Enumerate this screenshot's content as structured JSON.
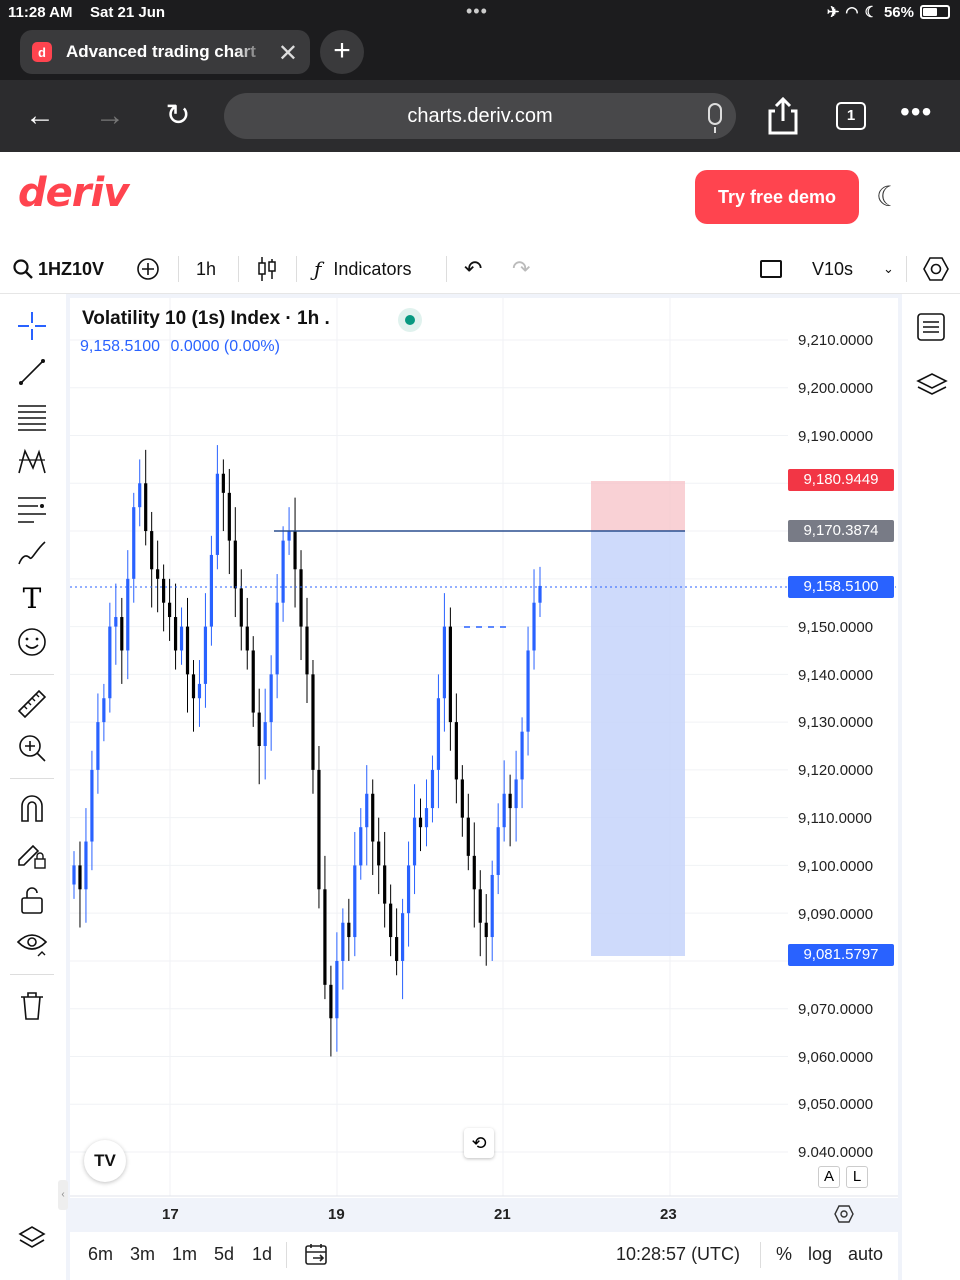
{
  "status_bar": {
    "time": "11:28 AM",
    "date": "Sat 21 Jun",
    "battery": "56%"
  },
  "browser": {
    "tab_title": "Advanced trading chart",
    "favicon_letter": "d",
    "url": "charts.deriv.com",
    "tab_count": "1"
  },
  "site": {
    "logo": "deriv",
    "demo_button": "Try free demo"
  },
  "toolbar": {
    "symbol": "1HZ10V",
    "interval": "1h",
    "indicators_label": "Indicators",
    "account_label": "V10s"
  },
  "legend": {
    "title": "Volatility 10 (1s) Index · 1h .",
    "price": "9,158.5100",
    "change": "0.0000 (0.00%)"
  },
  "price_axis": [
    "9,210.0000",
    "9,200.0000",
    "9,190.0000",
    "9,150.0000",
    "9,140.0000",
    "9,130.0000",
    "9,120.0000",
    "9,110.0000",
    "9,100.0000",
    "9,090.0000",
    "9,070.0000",
    "9,060.0000",
    "9,050.0000",
    "9.040.0000"
  ],
  "price_tags": {
    "stop": "9,180.9449",
    "entry": "9,170.3874",
    "current": "9,158.5100",
    "target": "9,081.5797"
  },
  "time_axis": [
    "17",
    "19",
    "21",
    "23"
  ],
  "bottom_bar": {
    "ranges": [
      "6m",
      "3m",
      "1m",
      "5d",
      "1d"
    ],
    "clock": "10:28:57 (UTC)",
    "percent": "%",
    "log": "log",
    "auto": "auto"
  },
  "axis_buttons": {
    "a": "A",
    "l": "L"
  },
  "colors": {
    "accent": "#ff444f",
    "candle_up": "#2962ff",
    "candle_down": "#000000",
    "current_tag": "#2962ff",
    "stop_tag": "#f23645",
    "entry_tag": "#787b86"
  },
  "chart_data": {
    "type": "candlestick",
    "x_ticks": [
      "17",
      "19",
      "21",
      "23"
    ],
    "ylim": [
      9035,
      9215
    ],
    "closes": [
      9100,
      9095,
      9105,
      9120,
      9130,
      9135,
      9150,
      9152,
      9145,
      9160,
      9175,
      9180,
      9170,
      9162,
      9160,
      9155,
      9152,
      9145,
      9150,
      9140,
      9135,
      9138,
      9150,
      9165,
      9182,
      9178,
      9168,
      9158,
      9150,
      9145,
      9132,
      9125,
      9130,
      9140,
      9155,
      9168,
      9170,
      9162,
      9150,
      9140,
      9120,
      9095,
      9075,
      9068,
      9080,
      9088,
      9085,
      9100,
      9108,
      9115,
      9105,
      9100,
      9092,
      9085,
      9080,
      9090,
      9100,
      9110,
      9108,
      9112,
      9120,
      9135,
      9150,
      9130,
      9118,
      9110,
      9102,
      9095,
      9088,
      9085,
      9098,
      9108,
      9115,
      9112,
      9118,
      9128,
      9145,
      9155,
      9158.51
    ],
    "current_price": 9158.51,
    "position": {
      "entry": 9170.3874,
      "stop": 9180.9449,
      "target": 9081.5797
    }
  }
}
